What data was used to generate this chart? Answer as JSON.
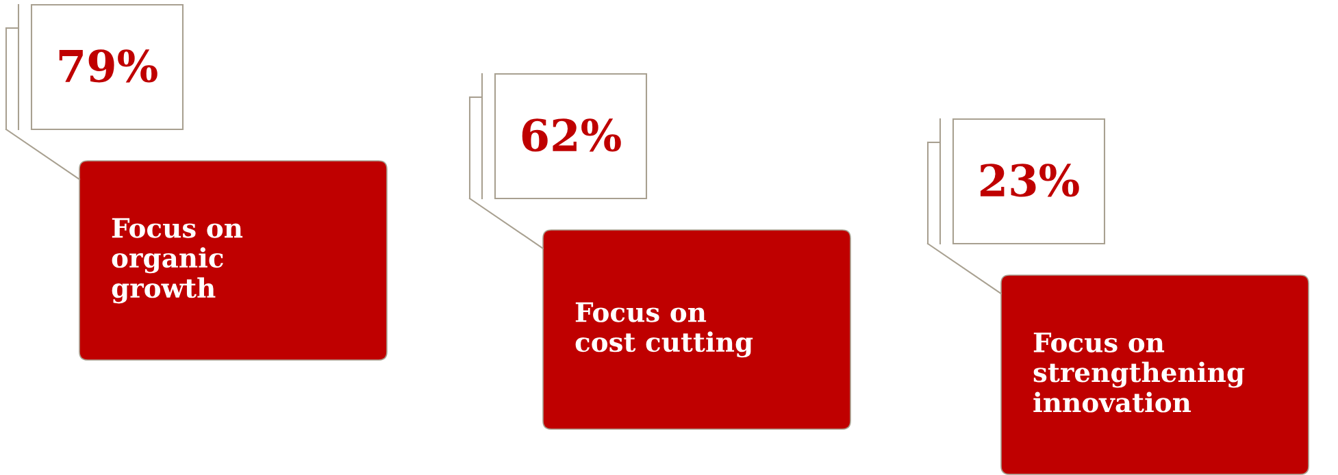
{
  "chart_data": {
    "type": "other",
    "categories": [
      "Focus on\norganic\ngrowth",
      "Focus on\ncost cutting",
      "Focus on\nstrengthening\ninnovation"
    ],
    "values": [
      79,
      62,
      23
    ],
    "value_labels": [
      "79%",
      "62%",
      "23%"
    ],
    "colors": [
      "#bf0000",
      "#bf0000",
      "#bf0000"
    ]
  }
}
